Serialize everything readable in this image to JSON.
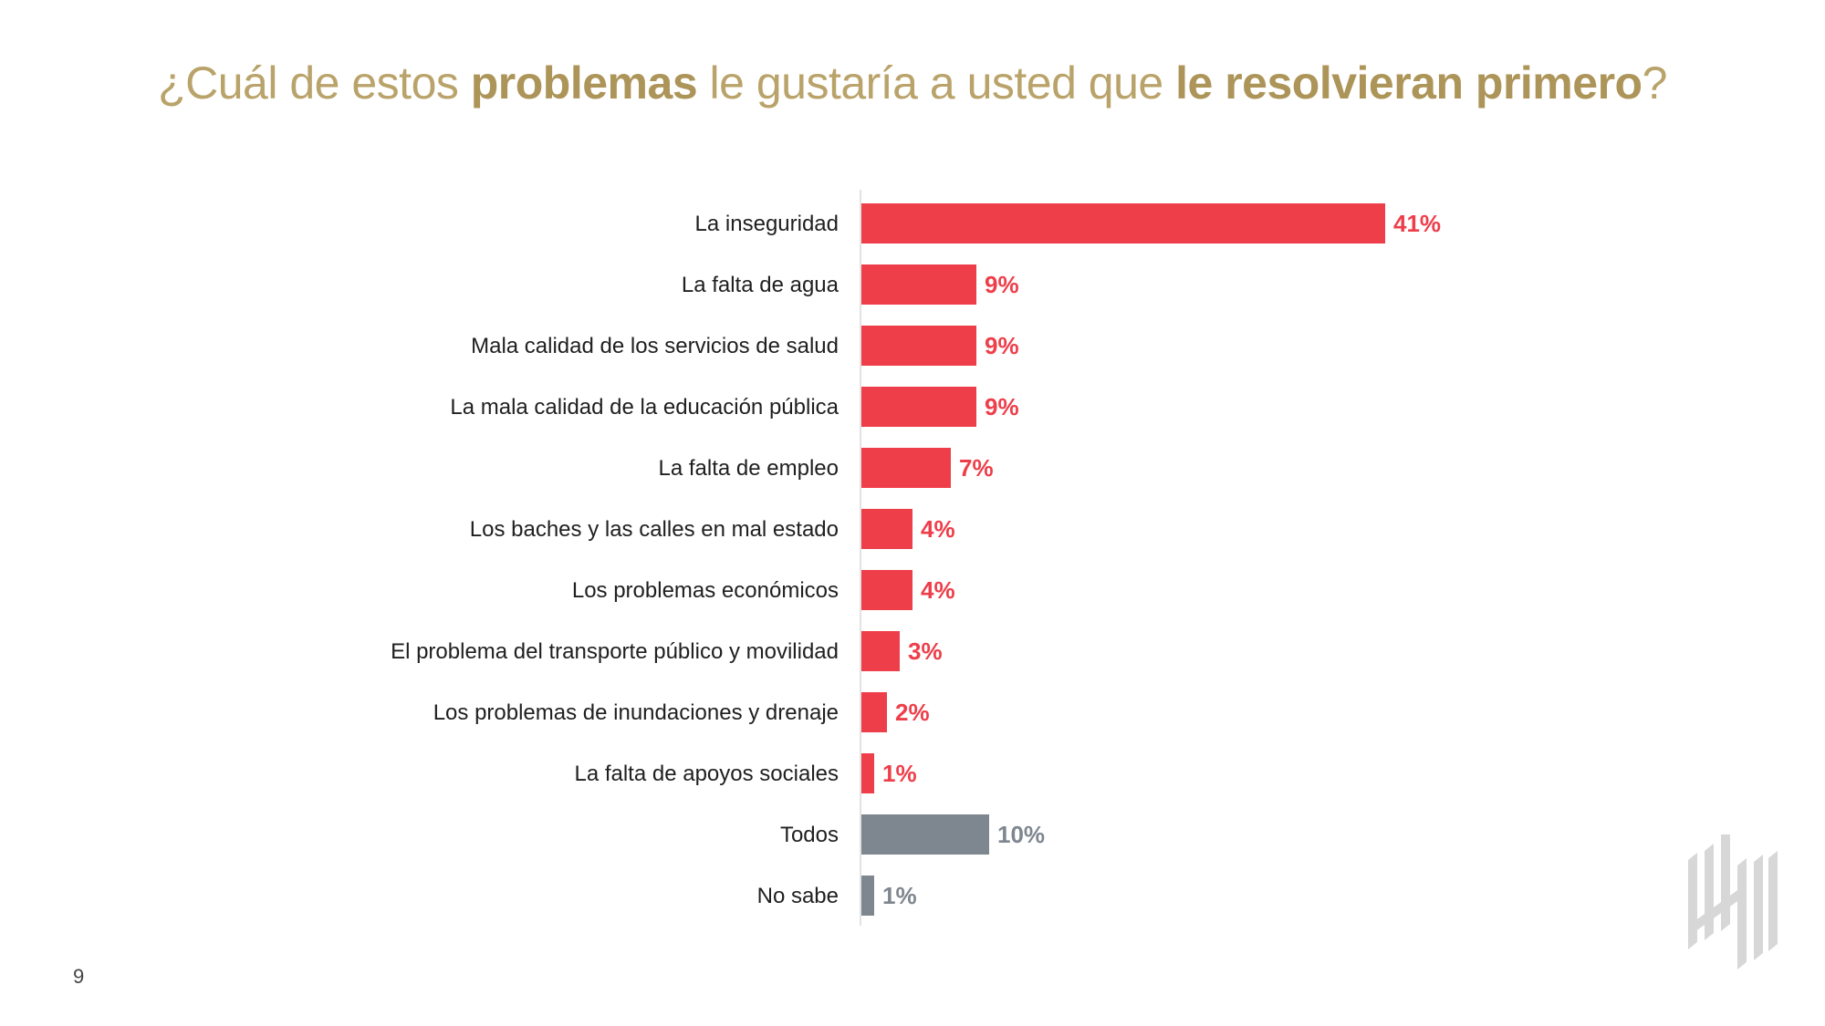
{
  "title": {
    "t1": "¿Cuál de estos ",
    "b1": "problemas",
    "t2": " le gustaría a usted que ",
    "b2": "le resolvieran primero",
    "t3": "?"
  },
  "page_number": "9",
  "colors": {
    "primary": "#ee3e4a",
    "secondary": "#7e868f",
    "title": "#b9a36a"
  },
  "chart_data": {
    "type": "bar",
    "orientation": "horizontal",
    "categories": [
      "La inseguridad",
      "La falta de agua",
      "Mala calidad de los servicios de salud",
      "La mala calidad de la educación pública",
      "La falta de empleo",
      "Los baches y las calles en mal estado",
      "Los problemas económicos",
      "El problema del transporte público y movilidad",
      "Los problemas de inundaciones y drenaje",
      "La falta de apoyos sociales",
      "Todos",
      "No sabe"
    ],
    "values": [
      41,
      9,
      9,
      9,
      7,
      4,
      4,
      3,
      2,
      1,
      10,
      1
    ],
    "labels": [
      "41%",
      "9%",
      "9%",
      "9%",
      "7%",
      "4%",
      "4%",
      "3%",
      "2%",
      "1%",
      "10%",
      "1%"
    ],
    "bar_colors": [
      "primary",
      "primary",
      "primary",
      "primary",
      "primary",
      "primary",
      "primary",
      "primary",
      "primary",
      "primary",
      "secondary",
      "secondary"
    ],
    "xlim": [
      0,
      45
    ],
    "grid": false,
    "legend": "none"
  }
}
